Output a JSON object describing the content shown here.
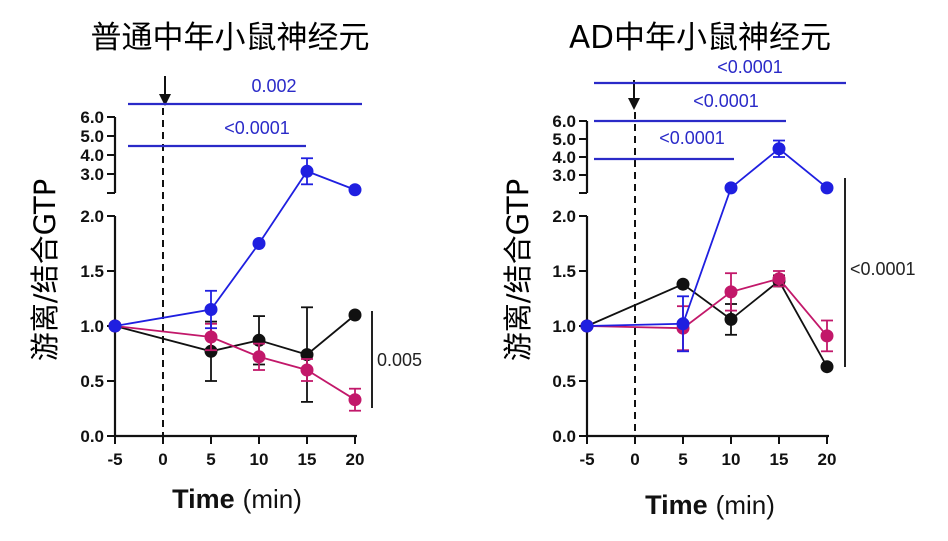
{
  "chart_data": [
    {
      "type": "line",
      "title": "普通中年小鼠神经元",
      "ylabel": "游离/结合GTP",
      "xlabel_bold": "Time",
      "xlabel_unit": "(min)",
      "x": [
        -5,
        0,
        5,
        10,
        15,
        20
      ],
      "x_tick_labels": [
        "-5",
        "0",
        "5",
        "10",
        "15",
        "20"
      ],
      "y_ticks_lower": [
        "0.0",
        "0.5",
        "1.0",
        "1.5",
        "2.0"
      ],
      "y_ticks_upper": [
        "3.0",
        "4.0",
        "5.0",
        "6.0"
      ],
      "ylim_lower": [
        0,
        2
      ],
      "ylim_upper": [
        2.5,
        6
      ],
      "series": [
        {
          "name": "blue",
          "color": "#1f1fe0",
          "points": [
            {
              "x": -5,
              "y": 1.0,
              "err": 0
            },
            {
              "x": 5,
              "y": 1.15,
              "err": 0.17
            },
            {
              "x": 10,
              "y": 1.75,
              "err": 0
            },
            {
              "x": 15,
              "y": 3.5,
              "err": 0.6
            },
            {
              "x": 20,
              "y": 2.65,
              "err": 0
            }
          ]
        },
        {
          "name": "magenta",
          "color": "#c2186a",
          "points": [
            {
              "x": -5,
              "y": 1.0,
              "err": 0
            },
            {
              "x": 5,
              "y": 0.9,
              "err": 0.12
            },
            {
              "x": 10,
              "y": 0.72,
              "err": 0.12
            },
            {
              "x": 15,
              "y": 0.6,
              "err": 0.1
            },
            {
              "x": 20,
              "y": 0.33,
              "err": 0.1
            }
          ]
        },
        {
          "name": "black",
          "color": "#111111",
          "points": [
            {
              "x": -5,
              "y": 1.0,
              "err": 0
            },
            {
              "x": 5,
              "y": 0.77,
              "err": 0.27
            },
            {
              "x": 10,
              "y": 0.87,
              "err": 0.22
            },
            {
              "x": 15,
              "y": 0.74,
              "err": 0.43
            },
            {
              "x": 20,
              "y": 1.1,
              "err": 0
            }
          ]
        }
      ],
      "p_values": [
        {
          "label": "0.002",
          "color": "#2a2ac8"
        },
        {
          "label": "<0.0001",
          "color": "#2a2ac8"
        },
        {
          "label": "0.005",
          "color": "#222222"
        }
      ]
    },
    {
      "type": "line",
      "title": "AD中年小鼠神经元",
      "ylabel": "游离/结合GTP",
      "xlabel_bold": "Time",
      "xlabel_unit": "(min)",
      "x": [
        -5,
        0,
        5,
        10,
        15,
        20
      ],
      "x_tick_labels": [
        "-5",
        "0",
        "5",
        "10",
        "15",
        "20"
      ],
      "y_ticks_lower": [
        "0.0",
        "0.5",
        "1.0",
        "1.5",
        "2.0"
      ],
      "y_ticks_upper": [
        "3.0",
        "4.0",
        "5.0",
        "6.0"
      ],
      "ylim_lower": [
        0,
        2
      ],
      "ylim_upper": [
        2.5,
        6
      ],
      "series": [
        {
          "name": "blue",
          "color": "#1f1fe0",
          "points": [
            {
              "x": -5,
              "y": 1.0,
              "err": 0
            },
            {
              "x": 5,
              "y": 1.02,
              "err": 0.25
            },
            {
              "x": 10,
              "y": 2.75,
              "err": 0
            },
            {
              "x": 15,
              "y": 4.65,
              "err": 0.4
            },
            {
              "x": 20,
              "y": 2.75,
              "err": 0
            }
          ]
        },
        {
          "name": "magenta",
          "color": "#c2186a",
          "points": [
            {
              "x": -5,
              "y": 1.0,
              "err": 0
            },
            {
              "x": 5,
              "y": 0.98,
              "err": 0.2
            },
            {
              "x": 10,
              "y": 1.31,
              "err": 0.17
            },
            {
              "x": 15,
              "y": 1.43,
              "err": 0.07
            },
            {
              "x": 20,
              "y": 0.91,
              "err": 0.14
            }
          ]
        },
        {
          "name": "black",
          "color": "#111111",
          "points": [
            {
              "x": -5,
              "y": 1.0,
              "err": 0
            },
            {
              "x": 5,
              "y": 1.38,
              "err": 0
            },
            {
              "x": 10,
              "y": 1.06,
              "err": 0.14
            },
            {
              "x": 15,
              "y": 1.41,
              "err": 0.05
            },
            {
              "x": 20,
              "y": 0.63,
              "err": 0
            }
          ]
        }
      ],
      "p_values": [
        {
          "label": "<0.0001",
          "color": "#2a2ac8"
        },
        {
          "label": "<0.0001",
          "color": "#2a2ac8"
        },
        {
          "label": "<0.0001",
          "color": "#2a2ac8"
        },
        {
          "label": "<0.0001",
          "color": "#222222"
        }
      ]
    }
  ]
}
